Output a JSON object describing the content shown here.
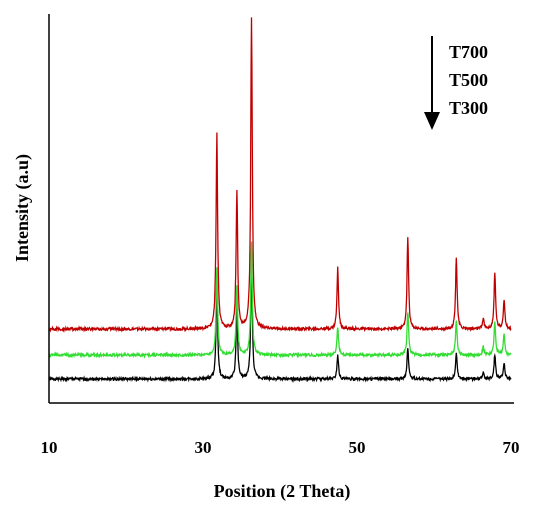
{
  "chart_data": {
    "type": "line",
    "xlabel": "Position (2 Theta)",
    "ylabel": "Intensity (a.u)",
    "xlim": [
      10,
      70
    ],
    "xticks": [
      10,
      30,
      50,
      70
    ],
    "yticks": [],
    "grid": false,
    "legend_order": [
      "T700",
      "T500",
      "T300"
    ],
    "series": [
      {
        "name": "T700",
        "color": "#c00000",
        "baseline": 0.0,
        "peaks": [
          {
            "x": 31.8,
            "y": 5.6
          },
          {
            "x": 34.4,
            "y": 3.9
          },
          {
            "x": 36.3,
            "y": 8.9
          },
          {
            "x": 47.5,
            "y": 1.75
          },
          {
            "x": 56.6,
            "y": 2.6
          },
          {
            "x": 62.9,
            "y": 2.05
          },
          {
            "x": 66.4,
            "y": 0.3
          },
          {
            "x": 67.9,
            "y": 1.6
          },
          {
            "x": 69.1,
            "y": 0.85
          }
        ]
      },
      {
        "name": "T500",
        "color": "#33dd33",
        "baseline": 0.0,
        "peaks": [
          {
            "x": 31.8,
            "y": 2.5
          },
          {
            "x": 34.4,
            "y": 1.95
          },
          {
            "x": 36.3,
            "y": 3.2
          },
          {
            "x": 47.5,
            "y": 0.8
          },
          {
            "x": 56.6,
            "y": 1.25
          },
          {
            "x": 62.9,
            "y": 1.0
          },
          {
            "x": 66.4,
            "y": 0.25
          },
          {
            "x": 67.9,
            "y": 0.95
          },
          {
            "x": 69.1,
            "y": 0.6
          }
        ]
      },
      {
        "name": "T300",
        "color": "#000000",
        "baseline": 0.0,
        "peaks": [
          {
            "x": 31.8,
            "y": 2.75
          },
          {
            "x": 34.4,
            "y": 2.1
          },
          {
            "x": 36.3,
            "y": 3.4
          },
          {
            "x": 47.5,
            "y": 0.7
          },
          {
            "x": 56.6,
            "y": 0.9
          },
          {
            "x": 62.9,
            "y": 0.75
          },
          {
            "x": 66.4,
            "y": 0.2
          },
          {
            "x": 67.9,
            "y": 0.7
          },
          {
            "x": 69.1,
            "y": 0.45
          }
        ]
      }
    ]
  }
}
